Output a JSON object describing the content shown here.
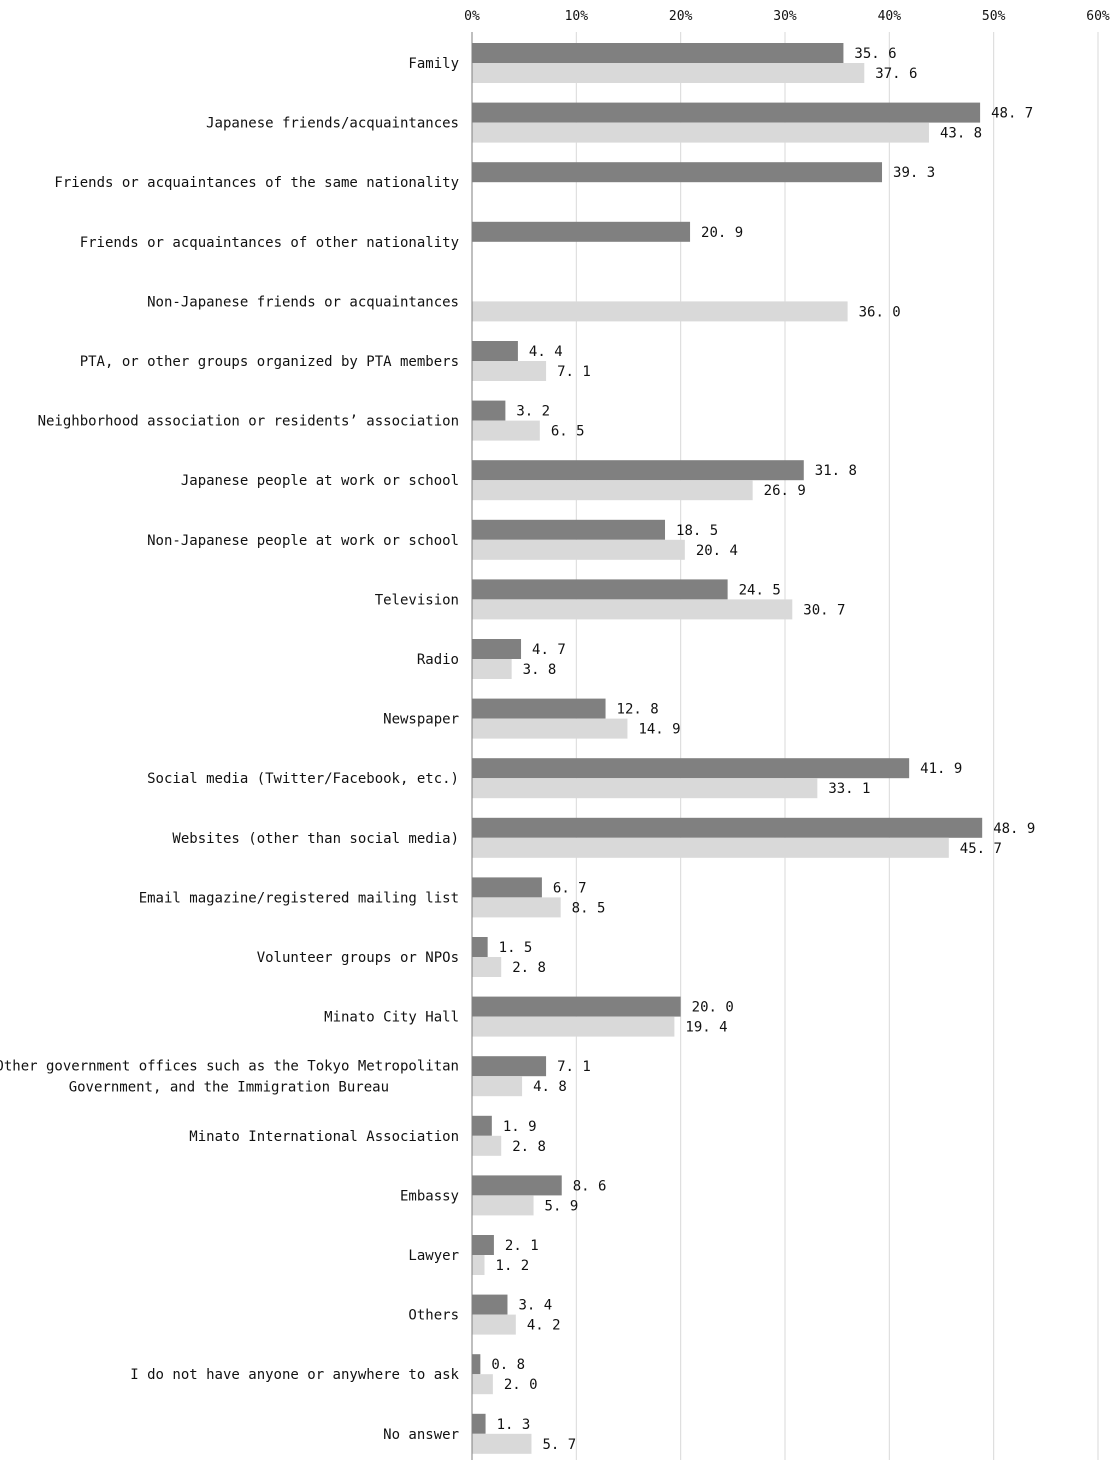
{
  "chart_data": {
    "type": "bar",
    "orientation": "horizontal",
    "xlim": [
      0,
      60
    ],
    "x_ticks": [
      "0%",
      "10%",
      "20%",
      "30%",
      "40%",
      "50%",
      "60%"
    ],
    "grid": true,
    "legend": "none",
    "colors": {
      "series_1": "#808080",
      "series_2": "#d9d9d9",
      "grid": "#d9d9d9",
      "axis": "#7f7f7f"
    },
    "categories": [
      "Family",
      "Japanese friends/acquaintances",
      "Friends or acquaintances of the same nationality",
      "Friends or acquaintances of other nationality",
      "Non-Japanese friends or acquaintances",
      "PTA, or other groups organized by PTA members",
      "Neighborhood association or residents’ association",
      "Japanese people at work or school",
      "Non-Japanese people at work or school",
      "Television",
      "Radio",
      "Newspaper",
      "Social media (Twitter/Facebook, etc.)",
      "Websites (other than social media)",
      "Email magazine/registered mailing list",
      "Volunteer groups or NPOs",
      "Minato City Hall",
      "Other government offices such as the Tokyo Metropolitan\nGovernment, and the Immigration Bureau",
      "Minato International Association",
      "Embassy",
      "Lawyer",
      "Others",
      "I do not have anyone or anywhere to ask",
      "No answer"
    ],
    "series": [
      {
        "values": [
          35.6,
          48.7,
          39.3,
          20.9,
          null,
          4.4,
          3.2,
          31.8,
          18.5,
          24.5,
          4.7,
          12.8,
          41.9,
          48.9,
          6.7,
          1.5,
          20.0,
          7.1,
          1.9,
          8.6,
          2.1,
          3.4,
          0.8,
          1.3
        ]
      },
      {
        "values": [
          37.6,
          43.8,
          null,
          null,
          36.0,
          7.1,
          6.5,
          26.9,
          20.4,
          30.7,
          3.8,
          14.9,
          33.1,
          45.7,
          8.5,
          2.8,
          19.4,
          4.8,
          2.8,
          5.9,
          1.2,
          4.2,
          2.0,
          5.7
        ]
      }
    ]
  }
}
